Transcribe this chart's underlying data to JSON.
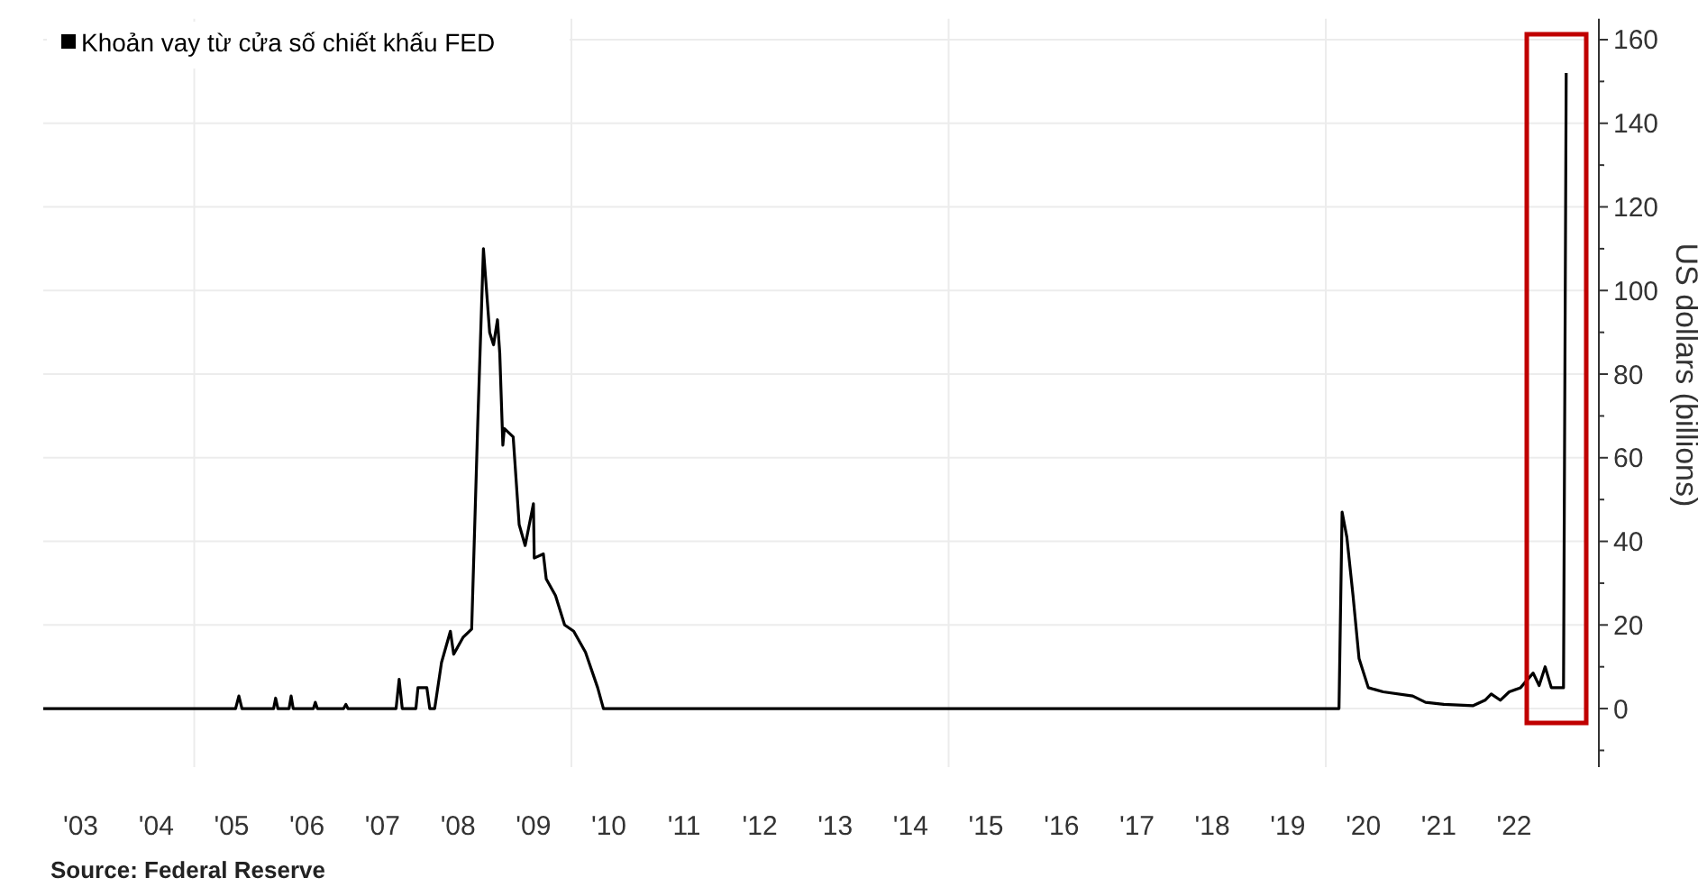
{
  "chart_data": {
    "type": "line",
    "ylabel": "US dollars (billions)",
    "annotations": [
      "Source: Federal Reserve"
    ],
    "legend": "top left",
    "grid": true,
    "line_style": "solid",
    "xlim": [
      "2003-01-01",
      "2023-06-15"
    ],
    "ylim": [
      -14,
      165
    ],
    "xticks": [
      {
        "value": "2003-07-01",
        "label": "'03"
      },
      {
        "value": "2004-07-01",
        "label": "'04"
      },
      {
        "value": "2005-01-01",
        "label": null
      },
      {
        "value": "2005-07-01",
        "label": "'05"
      },
      {
        "value": "2006-07-01",
        "label": "'06"
      },
      {
        "value": "2007-07-01",
        "label": "'07"
      },
      {
        "value": "2008-07-01",
        "label": "'08"
      },
      {
        "value": "2009-07-01",
        "label": "'09"
      },
      {
        "value": "2010-01-01",
        "label": null
      },
      {
        "value": "2010-07-01",
        "label": "'10"
      },
      {
        "value": "2011-07-01",
        "label": "'11"
      },
      {
        "value": "2012-07-01",
        "label": "'12"
      },
      {
        "value": "2013-07-01",
        "label": "'13"
      },
      {
        "value": "2014-07-01",
        "label": "'14"
      },
      {
        "value": "2015-01-01",
        "label": null
      },
      {
        "value": "2015-07-01",
        "label": "'15"
      },
      {
        "value": "2016-07-01",
        "label": "'16"
      },
      {
        "value": "2017-07-01",
        "label": "'17"
      },
      {
        "value": "2018-07-01",
        "label": "'18"
      },
      {
        "value": "2019-07-01",
        "label": "'19"
      },
      {
        "value": "2020-01-01",
        "label": null
      },
      {
        "value": "2020-07-01",
        "label": "'20"
      },
      {
        "value": "2021-07-01",
        "label": "'21"
      },
      {
        "value": "2022-07-01",
        "label": "'22"
      }
    ],
    "yticks": [
      {
        "value": -10,
        "label": null
      },
      0,
      {
        "value": 10,
        "label": null
      },
      20,
      {
        "value": 30,
        "label": null
      },
      40,
      {
        "value": 50,
        "label": null
      },
      60,
      {
        "value": 70,
        "label": null
      },
      80,
      {
        "value": 90,
        "label": null
      },
      100,
      {
        "value": 110,
        "label": null
      },
      120,
      {
        "value": 130,
        "label": null
      },
      140,
      {
        "value": 150,
        "label": null
      },
      160
    ],
    "series": [
      {
        "name": "Khoản vay từ cửa số chiết khấu FED",
        "color": "#000000",
        "x": [
          "2003-01-01",
          "2005-07-20",
          "2005-08-05",
          "2005-08-20",
          "2006-01-20",
          "2006-01-30",
          "2006-02-10",
          "2006-04-05",
          "2006-04-15",
          "2006-04-25",
          "2006-08-01",
          "2006-08-10",
          "2006-08-20",
          "2006-12-25",
          "2007-01-05",
          "2007-01-15",
          "2007-09-05",
          "2007-09-20",
          "2007-10-05",
          "2007-12-10",
          "2007-12-20",
          "2008-02-01",
          "2008-02-15",
          "2008-03-10",
          "2008-04-12",
          "2008-05-25",
          "2008-06-10",
          "2008-07-25",
          "2008-09-05",
          "2008-10-05",
          "2008-11-01",
          "2008-12-01",
          "2008-12-20",
          "2009-01-08",
          "2009-01-19",
          "2009-02-03",
          "2009-02-10",
          "2009-03-25",
          "2009-04-23",
          "2009-05-22",
          "2009-07-01",
          "2009-07-05",
          "2009-08-18",
          "2009-09-01",
          "2009-10-16",
          "2009-11-29",
          "2010-01-12",
          "2010-03-10",
          "2010-05-08",
          "2010-06-05",
          "2020-03-05",
          "2020-03-20",
          "2020-04-12",
          "2020-05-12",
          "2020-06-10",
          "2020-07-25",
          "2020-10-05",
          "2021-02-25",
          "2021-04-28",
          "2021-07-25",
          "2021-12-15",
          "2022-02-10",
          "2022-03-12",
          "2022-04-25",
          "2022-06-07",
          "2022-08-01",
          "2022-10-01",
          "2022-10-30",
          "2022-11-28",
          "2022-12-28",
          "2023-02-25",
          "2023-03-10"
        ],
        "values": [
          0,
          0,
          3,
          0,
          0,
          2.5,
          0,
          0,
          3,
          0,
          0,
          1.5,
          0,
          0,
          1,
          0,
          0,
          7,
          0,
          0,
          5,
          5,
          0,
          0,
          11,
          18.5,
          13,
          17,
          19,
          69,
          110,
          90,
          87,
          93,
          85,
          63,
          67,
          65,
          44,
          39,
          49,
          36,
          37,
          31,
          27,
          20,
          18.5,
          13.5,
          5,
          0,
          0,
          47,
          41,
          27,
          12,
          5,
          4,
          3,
          1.5,
          1,
          0.7,
          2,
          3.5,
          2,
          4,
          5,
          8.5,
          5.5,
          10,
          5,
          5,
          152
        ]
      }
    ]
  }
}
